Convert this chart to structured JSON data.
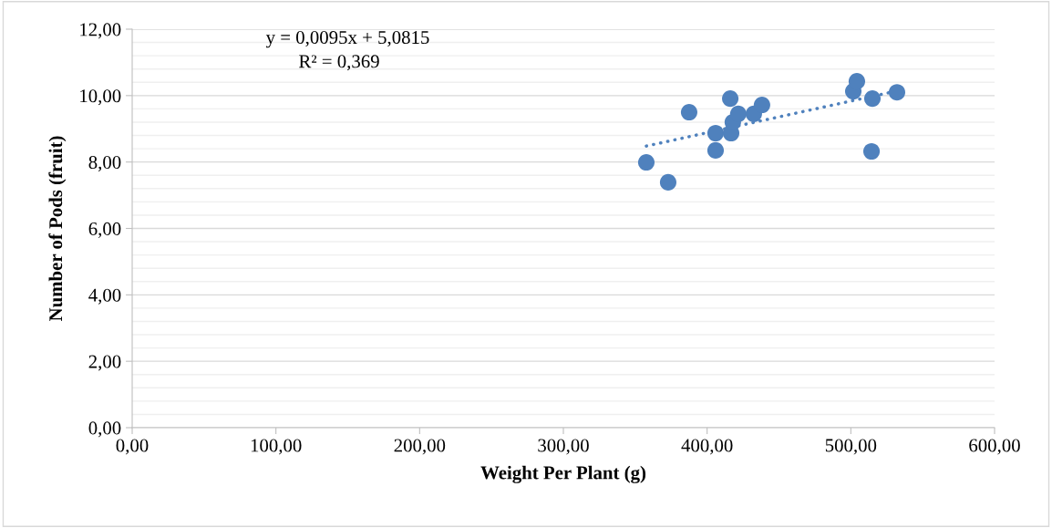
{
  "chart_data": {
    "type": "scatter",
    "xlabel": "Weight Per Plant (g)",
    "ylabel": "Number of Pods (fruit)",
    "annotations": [
      "y = 0,0095x + 5,0815",
      "R² = 0,369"
    ],
    "series": [
      {
        "color": "#4f81bd",
        "marker": "circle",
        "x": [
          357.7,
          372.9,
          387.5,
          405.9,
          405.9,
          416.1,
          416.7,
          417.9,
          421.7,
          432.5,
          438.2,
          501.7,
          504.2,
          515.0,
          514.4,
          532.1
        ],
        "values": [
          7.99,
          7.39,
          9.5,
          8.87,
          8.35,
          9.91,
          8.87,
          9.2,
          9.45,
          9.45,
          9.72,
          10.13,
          10.43,
          9.91,
          8.32,
          10.1
        ]
      },
      {
        "type": "line",
        "color": "#4f81bd",
        "line_style": "dotted",
        "x": [
          357.7,
          532.1
        ],
        "values": [
          8.48,
          10.14
        ]
      }
    ],
    "xlim": [
      0,
      600
    ],
    "ylim": [
      0,
      12
    ],
    "xticks": [
      {
        "value": 0,
        "label": "0,00"
      },
      {
        "value": 100,
        "label": "100,00"
      },
      {
        "value": 200,
        "label": "200,00"
      },
      {
        "value": 300,
        "label": "300,00"
      },
      {
        "value": 400,
        "label": "400,00"
      },
      {
        "value": 500,
        "label": "500,00"
      },
      {
        "value": 600,
        "label": "600,00"
      }
    ],
    "yticks": [
      {
        "value": 0,
        "label": "0,00"
      },
      {
        "value": 0.4,
        "label": null
      },
      {
        "value": 0.8,
        "label": null
      },
      {
        "value": 1.2,
        "label": null
      },
      {
        "value": 1.6,
        "label": null
      },
      {
        "value": 2,
        "label": "2,00"
      },
      {
        "value": 2.4,
        "label": null
      },
      {
        "value": 2.8,
        "label": null
      },
      {
        "value": 3.2,
        "label": null
      },
      {
        "value": 3.6,
        "label": null
      },
      {
        "value": 4,
        "label": "4,00"
      },
      {
        "value": 4.4,
        "label": null
      },
      {
        "value": 4.8,
        "label": null
      },
      {
        "value": 5.2,
        "label": null
      },
      {
        "value": 5.6,
        "label": null
      },
      {
        "value": 6,
        "label": "6,00"
      },
      {
        "value": 6.4,
        "label": null
      },
      {
        "value": 6.8,
        "label": null
      },
      {
        "value": 7.2,
        "label": null
      },
      {
        "value": 7.6,
        "label": null
      },
      {
        "value": 8,
        "label": "8,00"
      },
      {
        "value": 8.4,
        "label": null
      },
      {
        "value": 8.8,
        "label": null
      },
      {
        "value": 9.2,
        "label": null
      },
      {
        "value": 9.6,
        "label": null
      },
      {
        "value": 10,
        "label": "10,00"
      },
      {
        "value": 10.4,
        "label": null
      },
      {
        "value": 10.8,
        "label": null
      },
      {
        "value": 11.2,
        "label": null
      },
      {
        "value": 11.6,
        "label": null
      },
      {
        "value": 12,
        "label": "12,00"
      }
    ],
    "grid": "y"
  }
}
